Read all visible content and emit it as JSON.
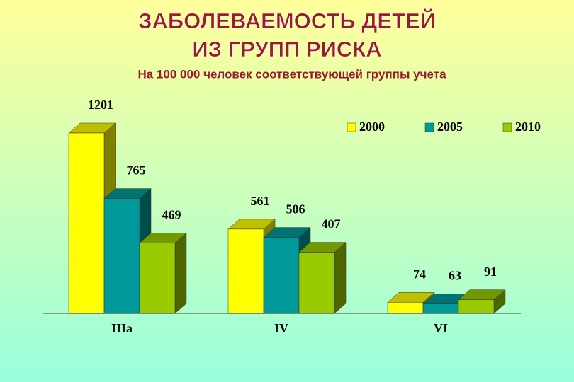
{
  "chart_data": {
    "type": "bar3d",
    "title": [
      "ЗАБОЛЕВАЕМОСТЬ  ДЕТЕЙ",
      "ИЗ ГРУПП РИСКА"
    ],
    "subtitle": "На 100 000 человек соответствующей группы учета",
    "categories": [
      "IIIa",
      "IV",
      "VI"
    ],
    "series": [
      {
        "name": "2000",
        "color": "#ffff00",
        "values": [
          1201,
          561,
          74
        ]
      },
      {
        "name": "2005",
        "color": "#009999",
        "values": [
          765,
          506,
          63
        ]
      },
      {
        "name": "2010",
        "color": "#99cc00",
        "values": [
          469,
          407,
          91
        ]
      }
    ],
    "legend": "top-right"
  }
}
